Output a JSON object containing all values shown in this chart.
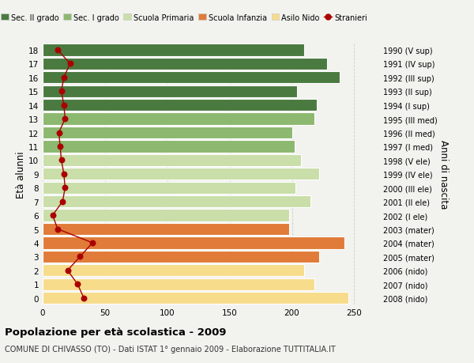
{
  "ages": [
    0,
    1,
    2,
    3,
    4,
    5,
    6,
    7,
    8,
    9,
    10,
    11,
    12,
    13,
    14,
    15,
    16,
    17,
    18
  ],
  "right_labels": [
    "2008 (nido)",
    "2007 (nido)",
    "2006 (nido)",
    "2005 (mater)",
    "2004 (mater)",
    "2003 (mater)",
    "2002 (I ele)",
    "2001 (II ele)",
    "2000 (III ele)",
    "1999 (IV ele)",
    "1998 (V ele)",
    "1997 (I med)",
    "1996 (II med)",
    "1995 (III med)",
    "1994 (I sup)",
    "1993 (II sup)",
    "1992 (III sup)",
    "1991 (IV sup)",
    "1990 (V sup)"
  ],
  "bar_values": [
    245,
    218,
    210,
    222,
    242,
    198,
    198,
    215,
    203,
    222,
    207,
    202,
    200,
    218,
    220,
    204,
    238,
    228,
    210
  ],
  "bar_colors": [
    "#f7dc8c",
    "#f7dc8c",
    "#f7dc8c",
    "#e07b39",
    "#e07b39",
    "#e07b39",
    "#c9dea9",
    "#c9dea9",
    "#c9dea9",
    "#c9dea9",
    "#c9dea9",
    "#8db870",
    "#8db870",
    "#8db870",
    "#4a7a40",
    "#4a7a40",
    "#4a7a40",
    "#4a7a40",
    "#4a7a40"
  ],
  "stranieri_values": [
    33,
    28,
    20,
    30,
    40,
    12,
    8,
    16,
    18,
    17,
    15,
    14,
    13,
    18,
    17,
    15,
    17,
    22,
    12
  ],
  "legend_labels": [
    "Sec. II grado",
    "Sec. I grado",
    "Scuola Primaria",
    "Scuola Infanzia",
    "Asilo Nido",
    "Stranieri"
  ],
  "legend_colors": [
    "#4a7a40",
    "#8db870",
    "#c9dea9",
    "#e07b39",
    "#f7dc8c",
    "#aa0000"
  ],
  "ylabel_left": "Età alunni",
  "ylabel_right": "Anni di nascita",
  "title_bold": "Popolazione per età scolastica - 2009",
  "subtitle": "COMUNE DI CHIVASSO (TO) - Dati ISTAT 1° gennaio 2009 - Elaborazione TUTTITALIA.IT",
  "xlim": [
    0,
    270
  ],
  "xticks": [
    0,
    50,
    100,
    150,
    200,
    250
  ],
  "bg_color": "#f2f2ee",
  "grid_color": "#cccccc",
  "bar_edge_color": "#ffffff"
}
